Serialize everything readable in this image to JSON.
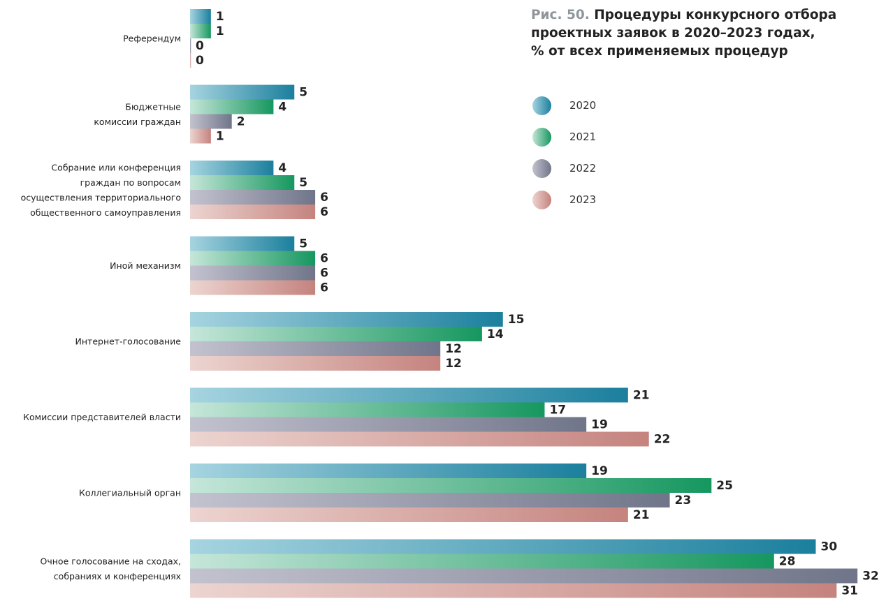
{
  "title": {
    "prefix": "Рис. 50.",
    "lines": [
      "Процедуры конкурсного отбора",
      "проектных заявок в 2020–2023 годах,",
      "% от всех применяемых процедур"
    ]
  },
  "chart_data": {
    "type": "bar",
    "orientation": "horizontal",
    "categories": [
      [
        "Референдум"
      ],
      [
        "Бюджетные",
        "комиссии граждан"
      ],
      [
        "Собрание или конференция",
        "граждан по вопросам",
        "осуществления территориального",
        "общественного самоуправления"
      ],
      [
        "Иной механизм"
      ],
      [
        "Интернет-голосование"
      ],
      [
        "Комиссии представителей власти"
      ],
      [
        "Коллегиальный орган"
      ],
      [
        "Очное голосование на сходах,",
        "собраниях и конференциях"
      ]
    ],
    "series": [
      {
        "name": "2020",
        "color_light": "#a6d4e0",
        "color_dark": "#1b7f9d",
        "values": [
          1,
          5,
          4,
          5,
          15,
          21,
          19,
          30
        ]
      },
      {
        "name": "2021",
        "color_light": "#c5e6d9",
        "color_dark": "#16975f",
        "values": [
          1,
          4,
          5,
          6,
          14,
          17,
          25,
          28
        ]
      },
      {
        "name": "2022",
        "color_light": "#c3c2cf",
        "color_dark": "#707589",
        "values": [
          0,
          2,
          6,
          6,
          12,
          19,
          23,
          32
        ]
      },
      {
        "name": "2023",
        "color_light": "#ecd4d0",
        "color_dark": "#c5837e",
        "values": [
          0,
          1,
          6,
          6,
          12,
          22,
          21,
          31
        ]
      }
    ],
    "xlim": [
      0,
      32
    ],
    "legend_position": "right",
    "grid": false
  }
}
